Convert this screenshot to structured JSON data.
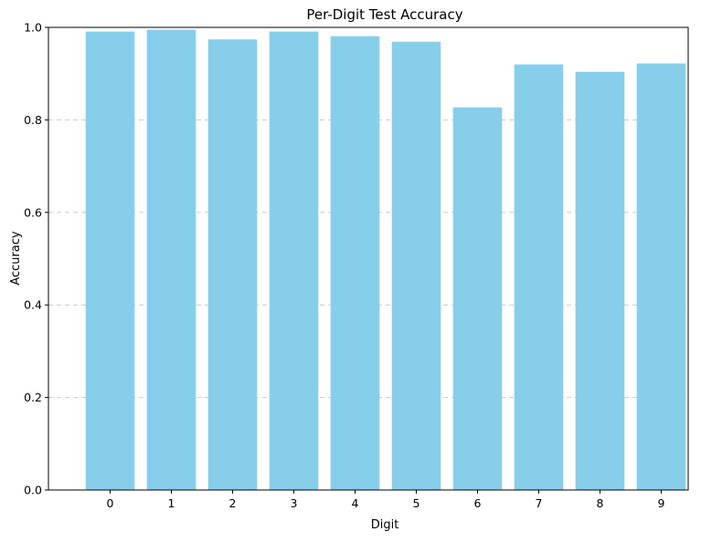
{
  "chart_data": {
    "type": "bar",
    "title": "Per-Digit Test Accuracy",
    "xlabel": "Digit",
    "ylabel": "Accuracy",
    "categories": [
      "0",
      "1",
      "2",
      "3",
      "4",
      "5",
      "6",
      "7",
      "8",
      "9"
    ],
    "values": [
      0.991,
      0.995,
      0.974,
      0.991,
      0.981,
      0.969,
      0.827,
      0.92,
      0.904,
      0.922
    ],
    "ylim": [
      0,
      1
    ],
    "yticks": [
      0.0,
      0.2,
      0.4,
      0.6,
      0.8,
      1.0
    ],
    "ytick_labels": [
      "0.0",
      "0.2",
      "0.4",
      "0.6",
      "0.8",
      "1.0"
    ],
    "grid": "y-axis dashed",
    "bar_color": "#87ceeb",
    "grid_color": "#c8c8c8"
  }
}
